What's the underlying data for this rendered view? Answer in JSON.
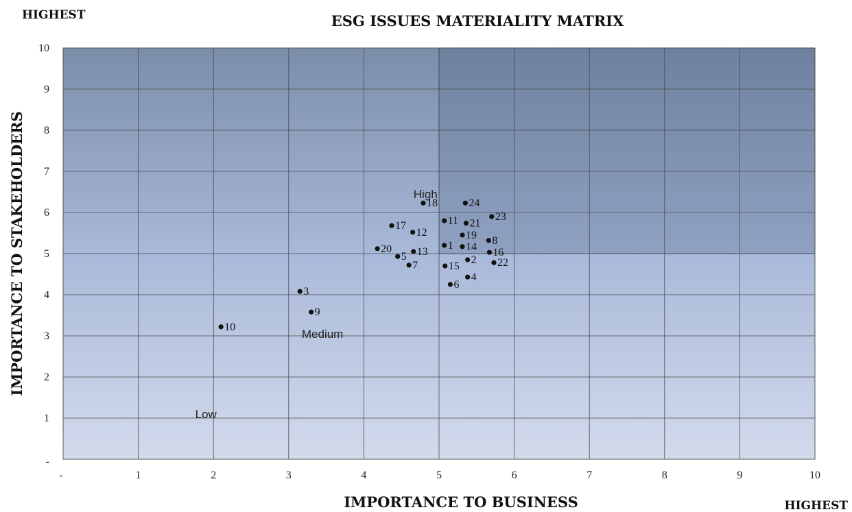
{
  "chart_data": {
    "type": "scatter",
    "title": "ESG ISSUES MATERIALITY MATRIX",
    "xlabel": "IMPORTANCE TO BUSINESS",
    "ylabel": "IMPORTANCE TO STAKEHOLDERS",
    "xlim": [
      0,
      10
    ],
    "ylim": [
      0,
      10
    ],
    "x_ticks": [
      "-",
      "1",
      "2",
      "3",
      "4",
      "5",
      "6",
      "7",
      "8",
      "9",
      "10"
    ],
    "y_ticks": [
      "-",
      "1",
      "2",
      "3",
      "4",
      "5",
      "6",
      "7",
      "8",
      "9",
      "10"
    ],
    "grid": true,
    "corner_labels": {
      "y_axis_top": "HIGHEST",
      "x_axis_right": "HIGHEST"
    },
    "zones": [
      {
        "label": "Low",
        "x": 1.9,
        "y": 1.1
      },
      {
        "label": "Medium",
        "x": 3.45,
        "y": 3.05
      },
      {
        "label": "High",
        "x": 4.82,
        "y": 6.45
      }
    ],
    "highlight_region": {
      "x": [
        5,
        10
      ],
      "y": [
        5,
        10
      ]
    },
    "points": [
      {
        "label": "1",
        "x": 5.07,
        "y": 5.2
      },
      {
        "label": "2",
        "x": 5.38,
        "y": 4.85
      },
      {
        "label": "3",
        "x": 3.15,
        "y": 4.08
      },
      {
        "label": "4",
        "x": 5.38,
        "y": 4.43
      },
      {
        "label": "5",
        "x": 4.45,
        "y": 4.93
      },
      {
        "label": "6",
        "x": 5.15,
        "y": 4.25
      },
      {
        "label": "7",
        "x": 4.6,
        "y": 4.72
      },
      {
        "label": "8",
        "x": 5.66,
        "y": 5.32
      },
      {
        "label": "9",
        "x": 3.3,
        "y": 3.58
      },
      {
        "label": "10",
        "x": 2.1,
        "y": 3.22
      },
      {
        "label": "11",
        "x": 5.07,
        "y": 5.8
      },
      {
        "label": "12",
        "x": 4.65,
        "y": 5.52
      },
      {
        "label": "13",
        "x": 4.66,
        "y": 5.05
      },
      {
        "label": "14",
        "x": 5.31,
        "y": 5.17
      },
      {
        "label": "15",
        "x": 5.08,
        "y": 4.7
      },
      {
        "label": "16",
        "x": 5.67,
        "y": 5.03
      },
      {
        "label": "17",
        "x": 4.37,
        "y": 5.68
      },
      {
        "label": "18",
        "x": 4.79,
        "y": 6.23
      },
      {
        "label": "19",
        "x": 5.31,
        "y": 5.45
      },
      {
        "label": "20",
        "x": 4.18,
        "y": 5.12
      },
      {
        "label": "21",
        "x": 5.36,
        "y": 5.74
      },
      {
        "label": "22",
        "x": 5.73,
        "y": 4.78
      },
      {
        "label": "23",
        "x": 5.7,
        "y": 5.9
      },
      {
        "label": "24",
        "x": 5.35,
        "y": 6.23
      }
    ]
  }
}
